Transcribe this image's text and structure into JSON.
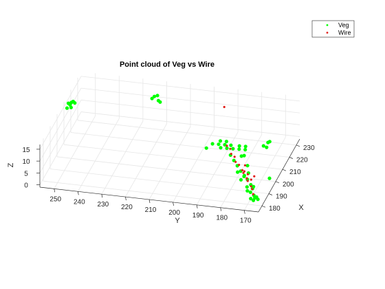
{
  "chart_data": {
    "type": "scatter",
    "title": "Point cloud of Veg vs Wire",
    "xlabel": "X",
    "ylabel": "Y",
    "zlabel": "Z",
    "xlim": [
      175,
      235
    ],
    "ylim": [
      164,
      256
    ],
    "zlim": [
      -1,
      17
    ],
    "x_ticks": [
      "180",
      "190",
      "200",
      "210",
      "220",
      "230"
    ],
    "y_ticks": [
      "170",
      "180",
      "190",
      "200",
      "210",
      "220",
      "230",
      "240",
      "250"
    ],
    "z_ticks": [
      "0",
      "5",
      "10",
      "15"
    ],
    "grid": true,
    "legend_position": "top-right",
    "series": [
      {
        "name": "Veg",
        "color": "#00ff00",
        "points": [
          [
            212,
            254,
            15
          ],
          [
            213,
            253,
            16
          ],
          [
            211,
            255,
            14
          ],
          [
            214,
            254,
            15
          ],
          [
            212,
            252,
            16
          ],
          [
            213,
            255,
            15
          ],
          [
            210,
            253,
            15
          ],
          [
            224,
            222,
            16
          ],
          [
            223,
            220,
            15
          ],
          [
            225,
            221,
            16
          ],
          [
            222,
            219,
            15
          ],
          [
            224,
            223,
            15
          ],
          [
            196,
            192,
            12
          ],
          [
            198,
            190,
            13
          ],
          [
            200,
            188,
            12
          ],
          [
            202,
            186,
            11
          ],
          [
            204,
            184,
            10
          ],
          [
            199,
            187,
            14
          ],
          [
            201,
            185,
            13
          ],
          [
            205,
            186,
            8
          ],
          [
            203,
            188,
            9
          ],
          [
            207,
            184,
            7
          ],
          [
            209,
            182,
            6
          ],
          [
            211,
            180,
            5
          ],
          [
            206,
            181,
            9
          ],
          [
            208,
            179,
            8
          ],
          [
            200,
            183,
            8
          ],
          [
            198,
            181,
            7
          ],
          [
            196,
            179,
            6
          ],
          [
            194,
            177,
            5
          ],
          [
            197,
            175,
            6
          ],
          [
            199,
            177,
            9
          ],
          [
            202,
            179,
            7
          ],
          [
            192,
            175,
            4
          ],
          [
            190,
            173,
            4
          ],
          [
            188,
            171,
            3
          ],
          [
            193,
            178,
            5
          ],
          [
            191,
            176,
            3
          ],
          [
            195,
            174,
            4
          ],
          [
            189,
            174,
            6
          ],
          [
            186,
            172,
            3
          ],
          [
            184,
            170,
            2
          ],
          [
            182,
            168,
            2
          ],
          [
            185,
            169,
            4
          ],
          [
            183,
            171,
            3
          ],
          [
            181,
            169,
            1
          ],
          [
            187,
            170,
            2
          ],
          [
            180,
            167,
            2
          ],
          [
            179,
            166,
            3
          ],
          [
            181,
            166,
            1
          ],
          [
            178,
            167,
            2
          ],
          [
            210,
            172,
            8
          ],
          [
            212,
            170,
            9
          ],
          [
            211,
            171,
            7
          ],
          [
            213,
            171,
            8
          ],
          [
            191,
            164,
            5
          ]
        ]
      },
      {
        "name": "Wire",
        "color": "#e0201b",
        "points": [
          [
            222,
            192,
            16
          ],
          [
            205,
            186,
            9
          ],
          [
            203,
            184,
            9
          ],
          [
            201,
            183,
            8
          ],
          [
            199,
            181,
            8
          ],
          [
            197,
            180,
            7
          ],
          [
            195,
            178,
            7
          ],
          [
            193,
            176,
            6
          ],
          [
            191,
            175,
            6
          ],
          [
            189,
            173,
            5
          ],
          [
            187,
            172,
            5
          ],
          [
            185,
            170,
            4
          ],
          [
            183,
            169,
            4
          ],
          [
            181,
            168,
            3
          ],
          [
            196,
            176,
            4
          ],
          [
            194,
            174,
            4
          ],
          [
            192,
            172,
            3
          ],
          [
            197,
            176,
            6
          ],
          [
            193,
            171,
            4
          ]
        ]
      }
    ]
  }
}
